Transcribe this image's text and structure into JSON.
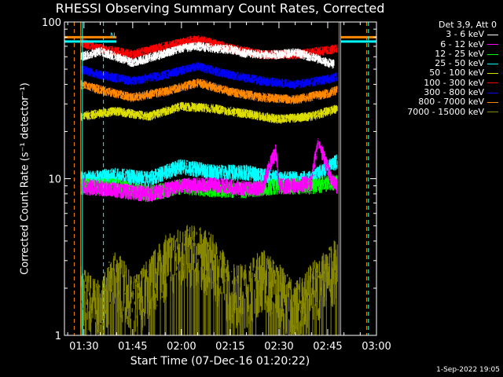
{
  "chart_data": {
    "type": "line",
    "title": "RHESSI Observing Summary Count Rates, Corrected",
    "xlabel": "Start Time (07-Dec-16 01:20:22)",
    "ylabel": "Corrected Count Rate (s⁻¹ detector⁻¹)",
    "x_ticks": [
      "01:30",
      "01:45",
      "02:00",
      "02:15",
      "02:30",
      "02:45",
      "03:00"
    ],
    "y_ticks": [
      "1",
      "10",
      "100"
    ],
    "y_scale": "log",
    "ylim": [
      1,
      100
    ],
    "x_range_minutes_after_0120": [
      4,
      100
    ],
    "legend_header": "Det 3,9, Att 0",
    "legend_placement": "right",
    "series": [
      {
        "name": "3 - 6 keV",
        "color": "#ffffff",
        "x_minutes": [
          9,
          15,
          25,
          35,
          40,
          45,
          50,
          55,
          60,
          65,
          70,
          75,
          80,
          85,
          87
        ],
        "values": [
          60,
          65,
          55,
          63,
          68,
          70,
          68,
          67,
          63,
          62,
          62,
          64,
          60,
          55,
          54
        ]
      },
      {
        "name": "6 - 12 keV",
        "color": "#ff00ff",
        "x_minutes": [
          9,
          20,
          30,
          40,
          50,
          60,
          65,
          69,
          70,
          75,
          80,
          82,
          86,
          88
        ],
        "values": [
          9,
          8.5,
          8,
          9,
          9.2,
          8.6,
          8.8,
          15,
          9,
          9,
          9.5,
          17,
          10,
          9
        ]
      },
      {
        "name": "12 - 25 keV",
        "color": "#00ff00",
        "x_minutes": [
          9,
          20,
          30,
          40,
          50,
          60,
          70,
          80,
          88
        ],
        "values": [
          9,
          9,
          8,
          9,
          8.6,
          8.5,
          9,
          9,
          9.5
        ]
      },
      {
        "name": "25 - 50 keV",
        "color": "#00ffff",
        "x_minutes": [
          9,
          20,
          30,
          40,
          50,
          60,
          70,
          80,
          88
        ],
        "values": [
          10,
          10.5,
          10,
          12,
          11,
          11,
          10,
          10,
          13
        ]
      },
      {
        "name": "50 - 100 keV",
        "color": "#dddd00",
        "x_minutes": [
          9,
          20,
          30,
          40,
          50,
          60,
          70,
          80,
          88
        ],
        "values": [
          25,
          27,
          25,
          29,
          28,
          26,
          24,
          25,
          28
        ]
      },
      {
        "name": "100 - 300 keV",
        "color": "#ff0000",
        "x_minutes": [
          9,
          15,
          25,
          35,
          45,
          55,
          65,
          75,
          85,
          88
        ],
        "values": [
          74,
          68,
          62,
          70,
          78,
          68,
          62,
          62,
          66,
          68
        ]
      },
      {
        "name": "300 - 800 keV",
        "color": "#0000ff",
        "x_minutes": [
          9,
          15,
          25,
          35,
          45,
          55,
          65,
          75,
          85,
          88
        ],
        "values": [
          50,
          46,
          42,
          46,
          52,
          46,
          42,
          40,
          43,
          45
        ]
      },
      {
        "name": "800 - 7000 keV",
        "color": "#ff8800",
        "x_minutes": [
          9,
          15,
          25,
          35,
          45,
          55,
          65,
          75,
          85,
          88
        ],
        "values": [
          40,
          37,
          33,
          36,
          41,
          36,
          33,
          32,
          35,
          37
        ]
      },
      {
        "name": "7000 - 15000 keV",
        "color": "#888800",
        "x_minutes": [
          9,
          15,
          20,
          25,
          30,
          35,
          40,
          45,
          50,
          55,
          60,
          65,
          70,
          75,
          80,
          85,
          88
        ],
        "values": [
          2,
          1.5,
          2.5,
          1.6,
          2.2,
          3,
          3.5,
          3.5,
          3,
          2,
          2,
          2.5,
          2,
          1.5,
          2,
          2.5,
          3
        ]
      }
    ],
    "markers": [
      {
        "x_minutes": 7,
        "color": "#ff8800",
        "style": "dashed"
      },
      {
        "x_minutes": 9,
        "color": "#ff8800",
        "style": "solid"
      },
      {
        "x_minutes": 9.5,
        "color": "#00ffff",
        "style": "solid"
      },
      {
        "x_minutes": 16,
        "color": "#00ffff",
        "style": "dashed"
      },
      {
        "x_minutes": 88.5,
        "color": "#ff8800",
        "style": "solid"
      },
      {
        "x_minutes": 89,
        "color": "#00ffff",
        "style": "solid"
      },
      {
        "x_minutes": 97,
        "color": "#ff8800",
        "style": "dashed"
      },
      {
        "x_minutes": 97.5,
        "color": "#00ffff",
        "style": "dashed"
      }
    ],
    "segments": [
      {
        "x0": 4,
        "x1": 20,
        "value": 80,
        "color": "#ff8800"
      },
      {
        "x0": 4,
        "x1": 20,
        "value": 75,
        "color": "#00ffff"
      },
      {
        "x0": 89,
        "x1": 100,
        "value": 80,
        "color": "#ff8800"
      },
      {
        "x0": 89,
        "x1": 100,
        "value": 75,
        "color": "#00ffff"
      }
    ]
  },
  "plot_mark": "N",
  "timestamp": "1-Sep-2022 19:05"
}
